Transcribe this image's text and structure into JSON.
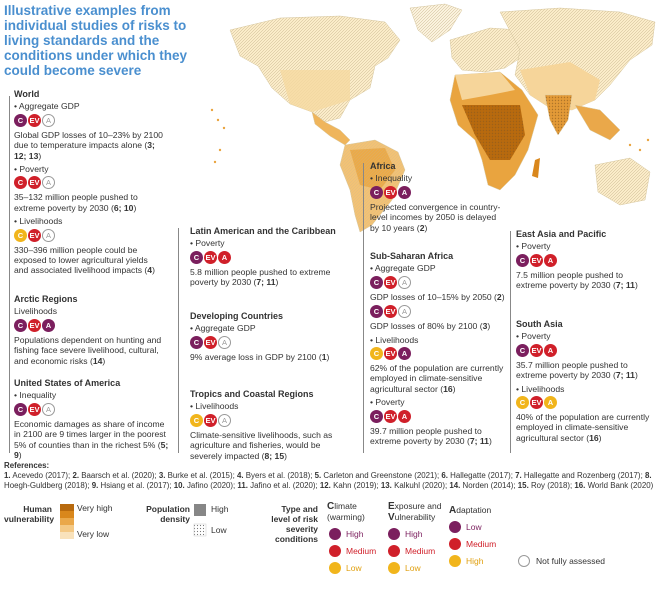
{
  "title": "Illustrative examples from individual studies of risks to living standards and the conditions under which they could become severe",
  "colors": {
    "high": "#7b1f5e",
    "medium": "#d0202a",
    "low": "#f1b51c",
    "title": "#4a8fcf"
  },
  "circle_letters": {
    "c": "C",
    "ev": "EV",
    "a": "A"
  },
  "regions": {
    "world": {
      "heading": "World",
      "items": [
        {
          "sub": "• Aggregate GDP",
          "c": "h",
          "ev": "m",
          "a": "n",
          "desc": "Global GDP losses of 10–23% by 2100 due to temperature impacts alone (",
          "refs": "3; 12; 13",
          "end": ")"
        },
        {
          "sub": "• Poverty",
          "c": "m",
          "ev": "m",
          "a": "n",
          "desc": "35–132 million people pushed to extreme poverty by 2030 (",
          "refs": "6; 10",
          "end": ")"
        },
        {
          "sub": "• Livelihoods",
          "c": "l",
          "ev": "m",
          "a": "n",
          "desc": "330–396 million people could be exposed to lower agricultural yields and associated livelihood impacts (",
          "refs": "4",
          "end": ")"
        }
      ]
    },
    "arctic": {
      "heading": "Arctic Regions",
      "items": [
        {
          "sub": "Livelihoods",
          "c": "h",
          "ev": "m",
          "a": "h",
          "desc": "Populations dependent on hunting and fishing face severe livelihood, cultural, and economic risks (",
          "refs": "14",
          "end": ")"
        }
      ]
    },
    "usa": {
      "heading": "United States of America",
      "items": [
        {
          "sub": "• Inequality",
          "c": "h",
          "ev": "m",
          "a": "n",
          "desc": "Economic damages as share of income in 2100 are 9 times larger in the poorest 5% of counties than in the richest 5% (",
          "refs": "5; 9",
          "end": ")"
        }
      ]
    },
    "latam": {
      "heading": "Latin American and the Caribbean",
      "items": [
        {
          "sub": "• Poverty",
          "c": "h",
          "ev": "m",
          "a": "m",
          "desc": "5.8 million people pushed to extreme poverty by 2030 (",
          "refs": "7; 11",
          "end": ")"
        }
      ]
    },
    "developing": {
      "heading": "Developing Countries",
      "items": [
        {
          "sub": "• Aggregate GDP",
          "c": "h",
          "ev": "m",
          "a": "n",
          "desc": "9% average loss in GDP by 2100 (",
          "refs": "1",
          "end": ")"
        }
      ]
    },
    "tropics": {
      "heading": "Tropics and Coastal Regions",
      "items": [
        {
          "sub": "• Livelihoods",
          "c": "l",
          "ev": "m",
          "a": "n",
          "desc": "Climate-sensitive livelihoods, such as agriculture and fisheries, would be severely impacted (",
          "refs": "8; 15",
          "end": ")"
        }
      ]
    },
    "africa": {
      "heading": "Africa",
      "items": [
        {
          "sub": "• Inequality",
          "c": "h",
          "ev": "m",
          "a": "h",
          "desc": "Projected convergence in country-level incomes by 2050 is delayed by 10 years (",
          "refs": "2",
          "end": ")"
        }
      ]
    },
    "ssa": {
      "heading": "Sub-Saharan Africa",
      "items": [
        {
          "sub": "• Aggregate GDP",
          "c": "h",
          "ev": "m",
          "a": "n",
          "desc": "GDP losses of 10–15% by 2050 (",
          "refs": "2",
          "end": ")"
        },
        {
          "sub": "",
          "c": "h",
          "ev": "m",
          "a": "n",
          "desc": "GDP losses of 80% by 2100 (",
          "refs": "3",
          "end": ")"
        },
        {
          "sub": "• Livelihoods",
          "c": "l",
          "ev": "m",
          "a": "h",
          "desc": "62% of the population are currently employed in climate-sensitive agricultural sector (",
          "refs": "16",
          "end": ")"
        },
        {
          "sub": "• Poverty",
          "c": "h",
          "ev": "m",
          "a": "m",
          "desc": "39.7 million people pushed to extreme poverty by 2030 (",
          "refs": "7; 11",
          "end": ")"
        }
      ]
    },
    "eap": {
      "heading": "East Asia and Pacific",
      "items": [
        {
          "sub": "• Poverty",
          "c": "h",
          "ev": "m",
          "a": "m",
          "desc": "7.5 million people pushed to extreme poverty by 2030 (",
          "refs": "7; 11",
          "end": ")"
        }
      ]
    },
    "sa": {
      "heading": "South Asia",
      "items": [
        {
          "sub": "• Poverty",
          "c": "h",
          "ev": "m",
          "a": "m",
          "desc": "35.7 million people pushed to extreme poverty by 2030 (",
          "refs": "7; 11",
          "end": ")"
        },
        {
          "sub": "• Livelihoods",
          "c": "l",
          "ev": "m",
          "a": "l",
          "desc": "40% of the population are currently  employed in climate-sensitive agricultural sector (",
          "refs": "16",
          "end": ")"
        }
      ]
    }
  },
  "references": {
    "title": "References:",
    "list": [
      {
        "n": "1.",
        "t": " Acevedo (2017); "
      },
      {
        "n": "2.",
        "t": " Baarsch et al. (2020); "
      },
      {
        "n": "3.",
        "t": " Burke et al. (2015); "
      },
      {
        "n": "4.",
        "t": " Byers et al. (2018); "
      },
      {
        "n": "5.",
        "t": " Carleton and Greenstone (2021); "
      },
      {
        "n": "6.",
        "t": " Hallegatte (2017); "
      },
      {
        "n": "7.",
        "t": " Hallegatte and Rozenberg (2017); "
      },
      {
        "n": "8.",
        "t": " Hoegh-Guldberg (2018); "
      },
      {
        "n": "9.",
        "t": " Hsiang et al. (2017); "
      },
      {
        "n": "10.",
        "t": " Jafino (2020); "
      },
      {
        "n": "11.",
        "t": " Jafino et al. (2020); "
      },
      {
        "n": "12.",
        "t": " Kahn (2019); "
      },
      {
        "n": "13.",
        "t": " Kalkuhl (2020); "
      },
      {
        "n": "14.",
        "t": " Norden (2014); "
      },
      {
        "n": "15.",
        "t": " Roy (2018); "
      },
      {
        "n": "16.",
        "t": " World Bank (2020)"
      }
    ]
  },
  "legend": {
    "vuln_title": "Human vulnerability",
    "vuln_high": "Very high",
    "vuln_low": "Very low",
    "vuln_colors": [
      "#b86a0e",
      "#d9871c",
      "#eaa84a",
      "#f4c985",
      "#f9e2bb"
    ],
    "density_title": "Population density",
    "density_high": "High",
    "density_low": "Low",
    "type_title": "Type and level of risk severity conditions",
    "climate_title_big": "C",
    "climate_title_rest": "limate",
    "climate_sub": "(warming)",
    "ev_title_1": "E",
    "ev_title_2": "xposure and",
    "ev_title_3": "V",
    "ev_title_4": "ulnerability",
    "ad_title_big": "A",
    "ad_title_rest": "daptation",
    "levels_cev": [
      "High",
      "Medium",
      "Low"
    ],
    "levels_a": [
      "Low",
      "Medium",
      "High"
    ],
    "not_assessed": "Not fully assessed"
  }
}
